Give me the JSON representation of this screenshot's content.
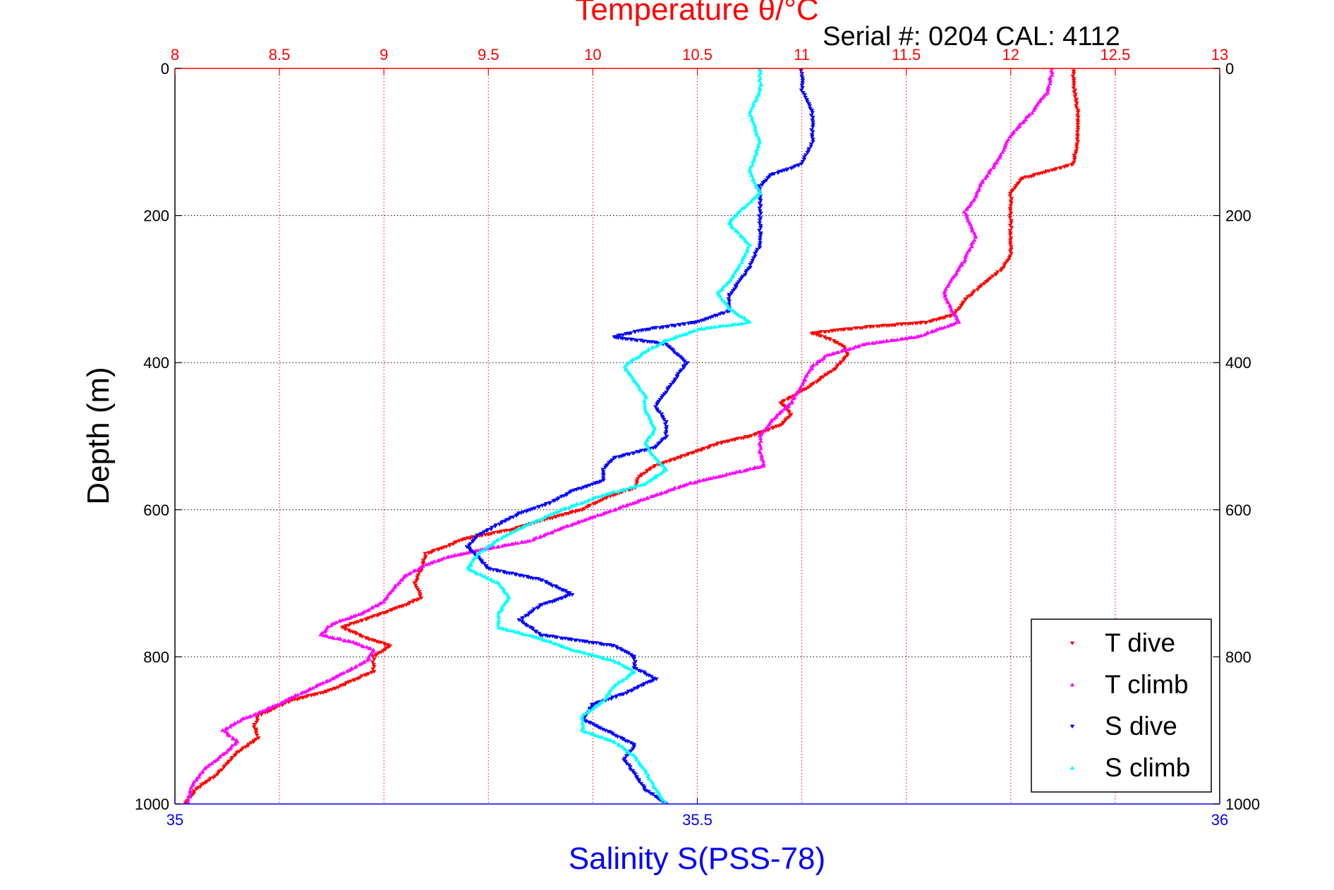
{
  "chart_data": {
    "type": "scatter",
    "title": "Temperature θ/°C",
    "subtitle": "Serial #: 0204  CAL: 4112",
    "ylabel": "Depth (m)",
    "xlabel": "Salinity S(PSS-78)",
    "y_reversed": true,
    "ylim": [
      0,
      1000
    ],
    "y_ticks": [
      "0",
      "200",
      "400",
      "600",
      "800",
      "1000"
    ],
    "x_top": {
      "name": "Temperature",
      "lim": [
        8,
        13
      ],
      "ticks": [
        "8",
        "8.5",
        "9",
        "9.5",
        "10",
        "10.5",
        "11",
        "11.5",
        "12",
        "12.5",
        "13"
      ]
    },
    "x_bottom": {
      "name": "Salinity",
      "lim": [
        35,
        36
      ],
      "ticks": [
        "35",
        "35.5",
        "36"
      ]
    },
    "grid": true,
    "legend_position": "bottom-right",
    "series": [
      {
        "name": "T dive",
        "axis": "top",
        "color": "#ff0000",
        "marker": "down-triangle",
        "points": [
          [
            12.3,
            0
          ],
          [
            12.3,
            20
          ],
          [
            12.32,
            60
          ],
          [
            12.32,
            100
          ],
          [
            12.3,
            130
          ],
          [
            12.05,
            150
          ],
          [
            12.0,
            170
          ],
          [
            12.0,
            200
          ],
          [
            12.0,
            230
          ],
          [
            12.0,
            255
          ],
          [
            11.95,
            275
          ],
          [
            11.88,
            290
          ],
          [
            11.78,
            315
          ],
          [
            11.73,
            335
          ],
          [
            11.6,
            345
          ],
          [
            11.3,
            352
          ],
          [
            11.05,
            360
          ],
          [
            11.15,
            370
          ],
          [
            11.2,
            378
          ],
          [
            11.22,
            390
          ],
          [
            11.15,
            410
          ],
          [
            11.05,
            430
          ],
          [
            10.9,
            455
          ],
          [
            10.95,
            470
          ],
          [
            10.9,
            485
          ],
          [
            10.75,
            500
          ],
          [
            10.6,
            510
          ],
          [
            10.45,
            525
          ],
          [
            10.3,
            540
          ],
          [
            10.22,
            555
          ],
          [
            10.2,
            570
          ],
          [
            10.05,
            585
          ],
          [
            9.95,
            600
          ],
          [
            9.75,
            615
          ],
          [
            9.6,
            628
          ],
          [
            9.38,
            640
          ],
          [
            9.3,
            650
          ],
          [
            9.2,
            660
          ],
          [
            9.18,
            680
          ],
          [
            9.15,
            700
          ],
          [
            9.18,
            720
          ],
          [
            9.05,
            735
          ],
          [
            8.9,
            750
          ],
          [
            8.8,
            760
          ],
          [
            8.92,
            775
          ],
          [
            9.03,
            785
          ],
          [
            8.95,
            800
          ],
          [
            8.95,
            820
          ],
          [
            8.75,
            845
          ],
          [
            8.55,
            860
          ],
          [
            8.4,
            880
          ],
          [
            8.38,
            895
          ],
          [
            8.4,
            910
          ],
          [
            8.3,
            930
          ],
          [
            8.2,
            960
          ],
          [
            8.1,
            980
          ],
          [
            8.05,
            1000
          ]
        ]
      },
      {
        "name": "T climb",
        "axis": "top",
        "color": "#ff00ff",
        "marker": "up-triangle",
        "points": [
          [
            12.2,
            0
          ],
          [
            12.18,
            30
          ],
          [
            12.1,
            60
          ],
          [
            12.0,
            90
          ],
          [
            11.95,
            120
          ],
          [
            11.9,
            140
          ],
          [
            11.85,
            160
          ],
          [
            11.83,
            175
          ],
          [
            11.78,
            195
          ],
          [
            11.83,
            230
          ],
          [
            11.78,
            260
          ],
          [
            11.72,
            285
          ],
          [
            11.68,
            305
          ],
          [
            11.72,
            330
          ],
          [
            11.75,
            345
          ],
          [
            11.55,
            365
          ],
          [
            11.3,
            375
          ],
          [
            11.12,
            390
          ],
          [
            11.05,
            405
          ],
          [
            11.0,
            430
          ],
          [
            10.95,
            455
          ],
          [
            10.85,
            480
          ],
          [
            10.8,
            500
          ],
          [
            10.8,
            520
          ],
          [
            10.82,
            540
          ],
          [
            10.6,
            555
          ],
          [
            10.45,
            565
          ],
          [
            10.32,
            578
          ],
          [
            10.2,
            590
          ],
          [
            10.0,
            610
          ],
          [
            9.85,
            625
          ],
          [
            9.7,
            642
          ],
          [
            9.45,
            655
          ],
          [
            9.3,
            665
          ],
          [
            9.2,
            675
          ],
          [
            9.1,
            690
          ],
          [
            9.05,
            705
          ],
          [
            9.0,
            725
          ],
          [
            8.9,
            740
          ],
          [
            8.75,
            755
          ],
          [
            8.7,
            770
          ],
          [
            8.85,
            780
          ],
          [
            8.95,
            790
          ],
          [
            8.92,
            805
          ],
          [
            8.75,
            830
          ],
          [
            8.6,
            850
          ],
          [
            8.45,
            870
          ],
          [
            8.32,
            885
          ],
          [
            8.23,
            900
          ],
          [
            8.3,
            915
          ],
          [
            8.22,
            935
          ],
          [
            8.15,
            950
          ],
          [
            8.08,
            975
          ],
          [
            8.06,
            1000
          ]
        ]
      },
      {
        "name": "S dive",
        "axis": "bottom",
        "color": "#0000ff",
        "marker": "down-triangle",
        "points": [
          [
            35.6,
            0
          ],
          [
            35.6,
            30
          ],
          [
            35.61,
            60
          ],
          [
            35.61,
            100
          ],
          [
            35.6,
            130
          ],
          [
            35.57,
            145
          ],
          [
            35.56,
            160
          ],
          [
            35.56,
            200
          ],
          [
            35.56,
            240
          ],
          [
            35.55,
            270
          ],
          [
            35.54,
            290
          ],
          [
            35.53,
            310
          ],
          [
            35.53,
            330
          ],
          [
            35.5,
            345
          ],
          [
            35.45,
            355
          ],
          [
            35.42,
            365
          ],
          [
            35.47,
            375
          ],
          [
            35.49,
            400
          ],
          [
            35.48,
            420
          ],
          [
            35.47,
            440
          ],
          [
            35.46,
            460
          ],
          [
            35.47,
            480
          ],
          [
            35.47,
            500
          ],
          [
            35.46,
            515
          ],
          [
            35.42,
            530
          ],
          [
            35.41,
            545
          ],
          [
            35.41,
            560
          ],
          [
            35.38,
            575
          ],
          [
            35.36,
            590
          ],
          [
            35.33,
            605
          ],
          [
            35.31,
            620
          ],
          [
            35.29,
            635
          ],
          [
            35.28,
            650
          ],
          [
            35.29,
            665
          ],
          [
            35.3,
            680
          ],
          [
            35.35,
            695
          ],
          [
            35.38,
            715
          ],
          [
            35.35,
            730
          ],
          [
            35.33,
            750
          ],
          [
            35.35,
            770
          ],
          [
            35.42,
            785
          ],
          [
            35.44,
            800
          ],
          [
            35.44,
            815
          ],
          [
            35.46,
            830
          ],
          [
            35.43,
            850
          ],
          [
            35.4,
            865
          ],
          [
            35.39,
            885
          ],
          [
            35.42,
            905
          ],
          [
            35.44,
            920
          ],
          [
            35.43,
            940
          ],
          [
            35.44,
            960
          ],
          [
            35.45,
            980
          ],
          [
            35.47,
            1000
          ]
        ]
      },
      {
        "name": "S climb",
        "axis": "bottom",
        "color": "#00ffff",
        "marker": "up-triangle",
        "points": [
          [
            35.56,
            0
          ],
          [
            35.56,
            30
          ],
          [
            35.55,
            60
          ],
          [
            35.56,
            100
          ],
          [
            35.55,
            140
          ],
          [
            35.56,
            170
          ],
          [
            35.54,
            195
          ],
          [
            35.53,
            210
          ],
          [
            35.55,
            240
          ],
          [
            35.54,
            270
          ],
          [
            35.53,
            290
          ],
          [
            35.52,
            305
          ],
          [
            35.53,
            325
          ],
          [
            35.55,
            345
          ],
          [
            35.5,
            355
          ],
          [
            35.47,
            370
          ],
          [
            35.45,
            385
          ],
          [
            35.43,
            405
          ],
          [
            35.44,
            425
          ],
          [
            35.45,
            445
          ],
          [
            35.45,
            465
          ],
          [
            35.46,
            490
          ],
          [
            35.45,
            510
          ],
          [
            35.46,
            530
          ],
          [
            35.47,
            545
          ],
          [
            35.45,
            565
          ],
          [
            35.41,
            580
          ],
          [
            35.37,
            600
          ],
          [
            35.33,
            625
          ],
          [
            35.31,
            640
          ],
          [
            35.29,
            660
          ],
          [
            35.28,
            680
          ],
          [
            35.31,
            700
          ],
          [
            35.32,
            720
          ],
          [
            35.31,
            740
          ],
          [
            35.31,
            760
          ],
          [
            35.35,
            775
          ],
          [
            35.38,
            790
          ],
          [
            35.42,
            805
          ],
          [
            35.44,
            820
          ],
          [
            35.42,
            840
          ],
          [
            35.41,
            860
          ],
          [
            35.39,
            880
          ],
          [
            35.39,
            900
          ],
          [
            35.42,
            915
          ],
          [
            35.44,
            935
          ],
          [
            35.45,
            955
          ],
          [
            35.46,
            980
          ],
          [
            35.47,
            1000
          ]
        ]
      }
    ]
  }
}
